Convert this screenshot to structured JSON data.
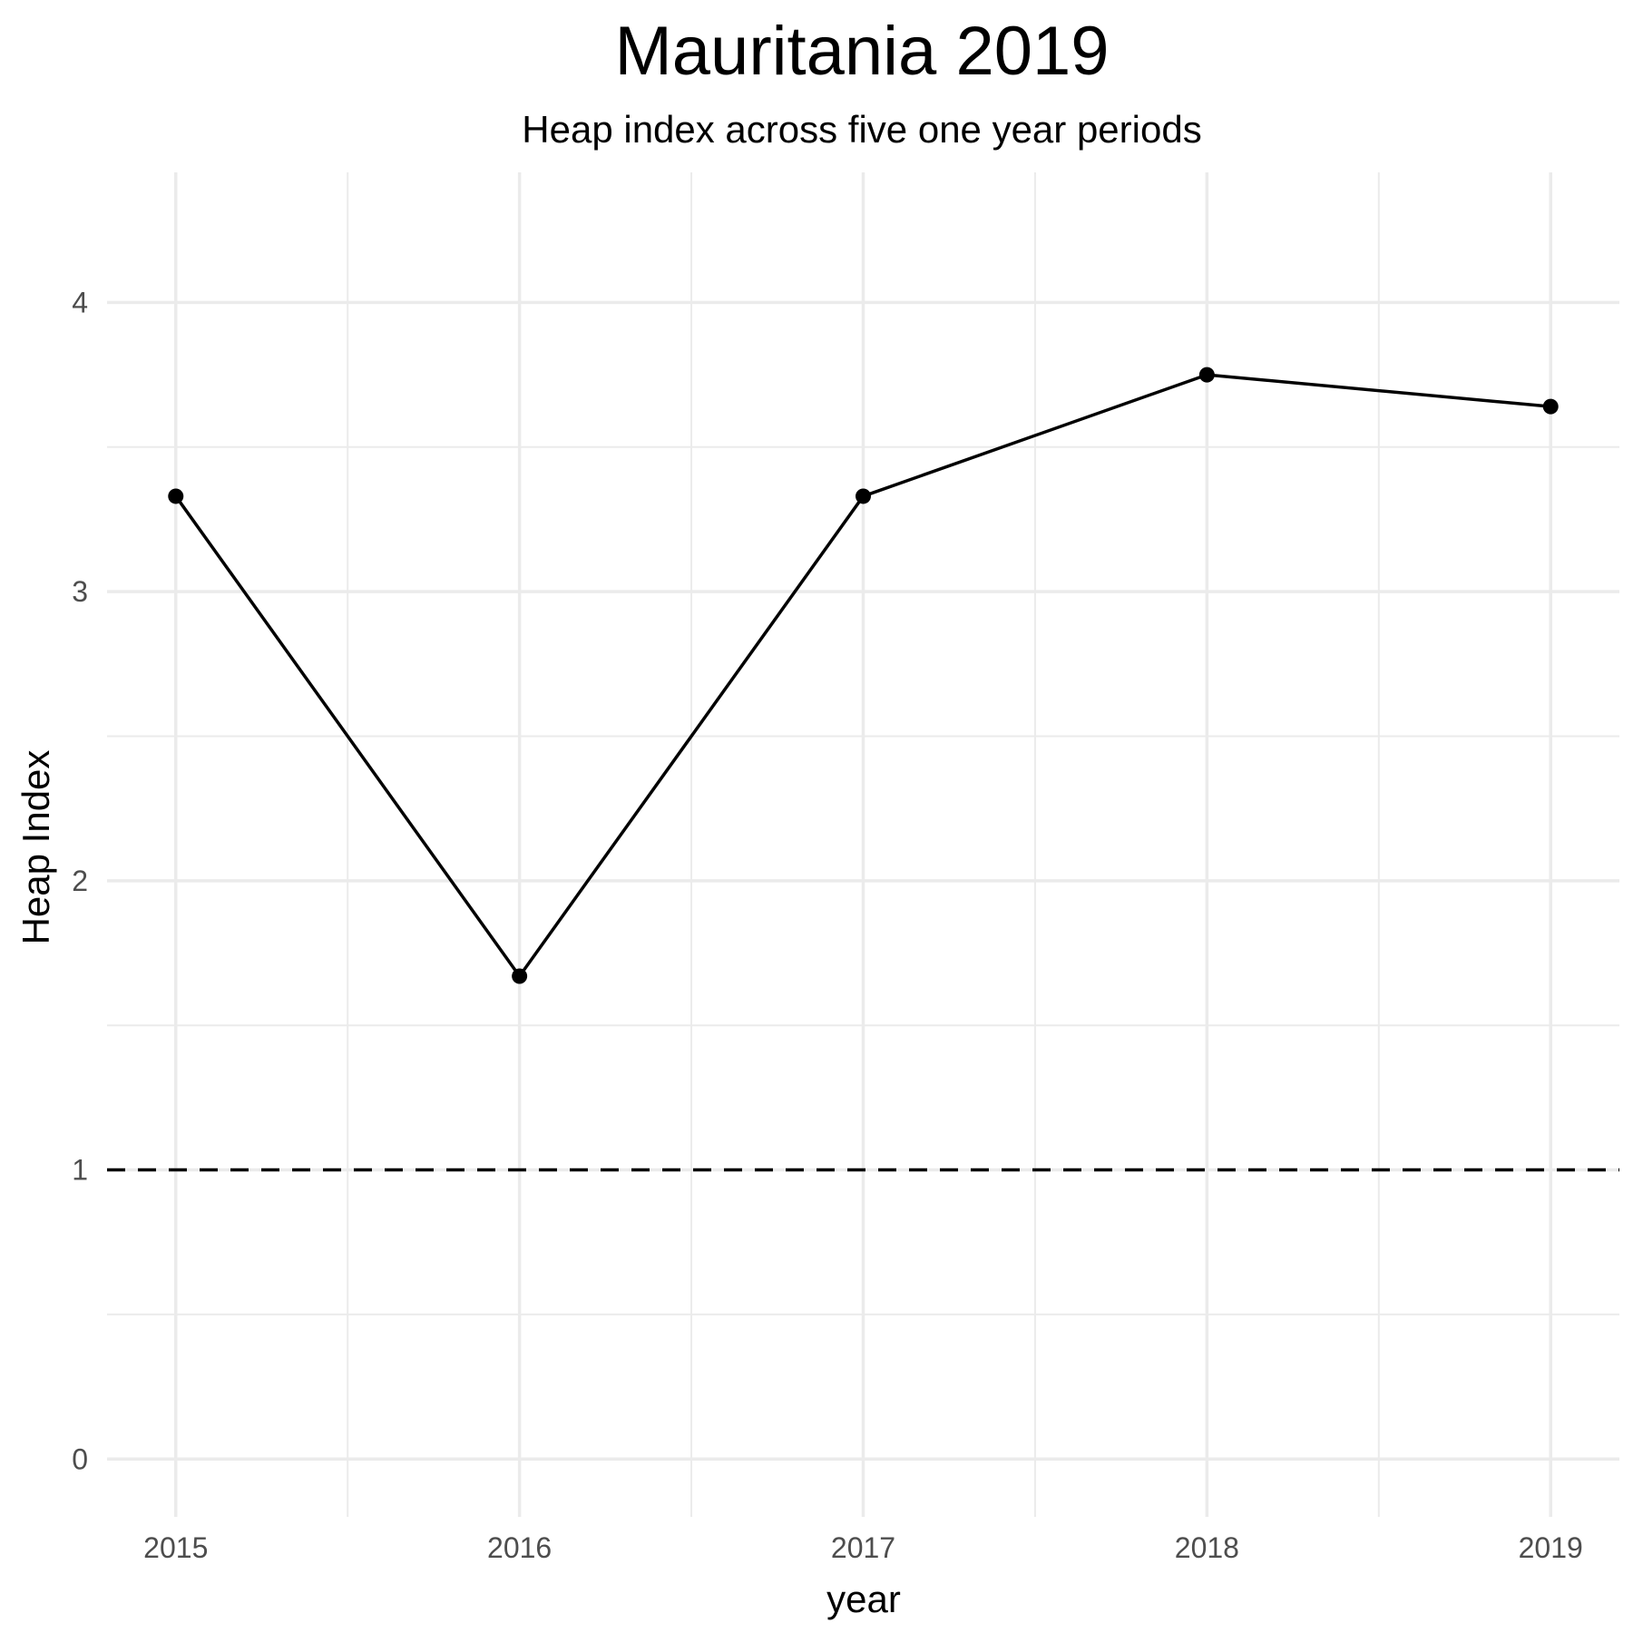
{
  "chart_data": {
    "type": "line",
    "title": "Mauritania 2019",
    "subtitle": "Heap index across five one year periods",
    "xlabel": "year",
    "ylabel": "Heap Index",
    "x": [
      2015,
      2016,
      2017,
      2018,
      2019
    ],
    "x_tick_labels": [
      "2015",
      "2016",
      "2017",
      "2018",
      "2019"
    ],
    "y_ticks": [
      0,
      1,
      2,
      3,
      4
    ],
    "y_tick_labels": [
      "0",
      "1",
      "2",
      "3",
      "4"
    ],
    "series": [
      {
        "values": [
          3.33,
          1.67,
          3.33,
          3.75,
          3.64
        ]
      }
    ],
    "reference_line": {
      "y": 1,
      "style": "dashed"
    },
    "xlim": [
      2014.8,
      2019.2
    ],
    "ylim": [
      -0.2,
      4.45
    ],
    "grid": true,
    "colors": {
      "line": "#000000",
      "grid": "#ebebeb",
      "tick_text": "#4d4d4d"
    }
  }
}
